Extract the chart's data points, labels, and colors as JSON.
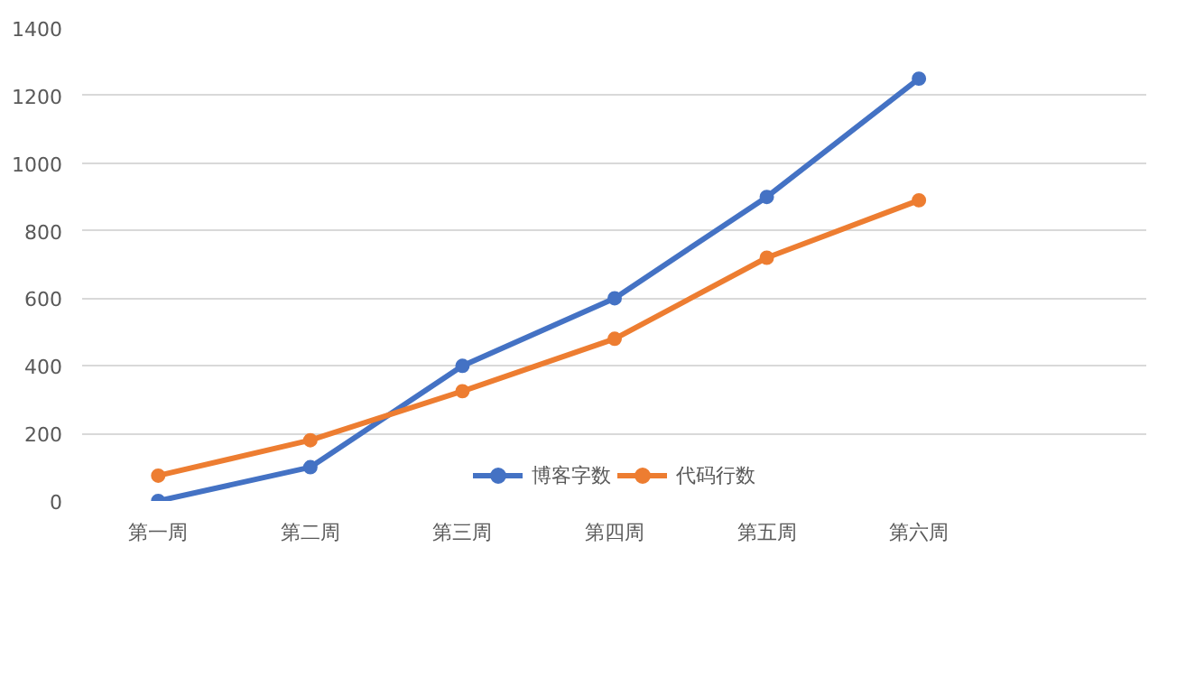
{
  "chart_data": {
    "type": "line",
    "categories": [
      "第一周",
      "第二周",
      "第三周",
      "第四周",
      "第五周",
      "第六周",
      null
    ],
    "series": [
      {
        "name": "博客字数",
        "color": "#4472c4",
        "values": [
          0,
          100,
          400,
          600,
          900,
          1250,
          null
        ]
      },
      {
        "name": "代码行数",
        "color": "#ed7d31",
        "values": [
          75,
          180,
          325,
          480,
          720,
          890,
          null
        ]
      }
    ],
    "ylim": [
      0,
      1400
    ],
    "yticks": [
      0,
      200,
      400,
      600,
      800,
      1000,
      1200,
      1400
    ],
    "grid": "y",
    "legend": "bottom",
    "marker": "circle",
    "line_style": "solid"
  }
}
